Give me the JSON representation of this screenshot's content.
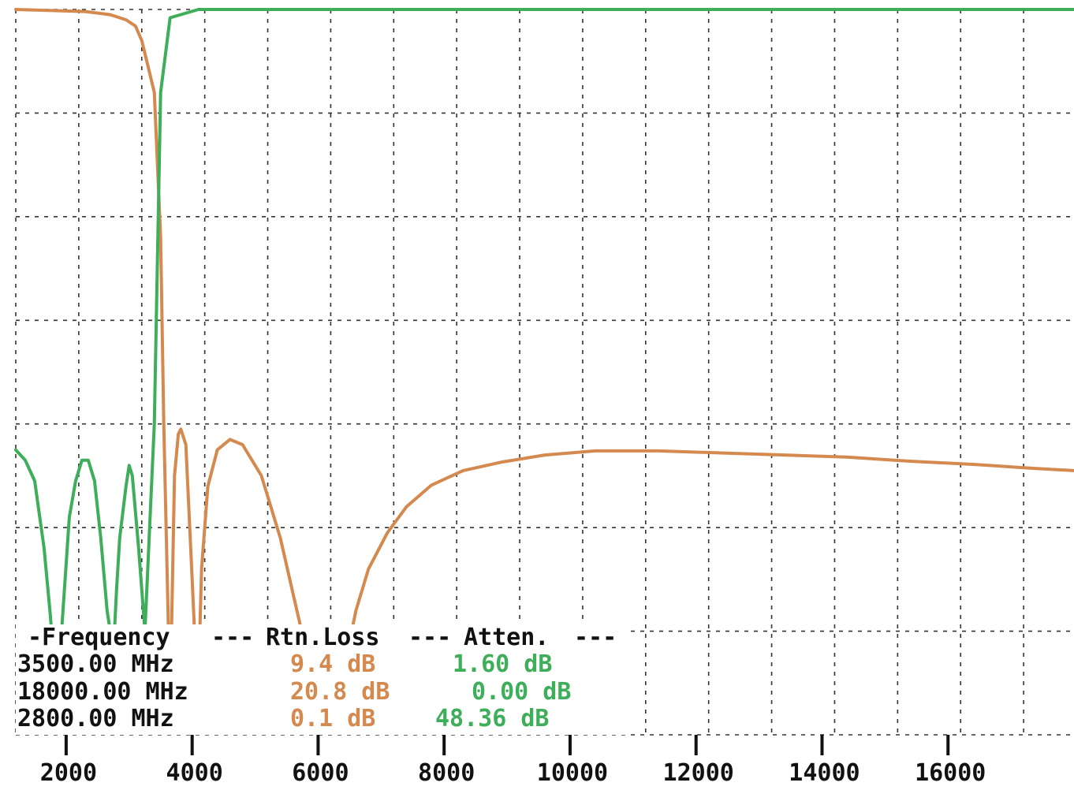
{
  "chart_data": {
    "type": "line",
    "xlim": [
      1100,
      17900
    ],
    "ylim": [
      0,
      70
    ],
    "grid": true,
    "x_ticks": [
      1100,
      2100,
      3100,
      4100,
      5100,
      6100,
      7100,
      8100,
      9100,
      10100,
      11100,
      12100,
      13100,
      14100,
      15100,
      16100,
      17100
    ],
    "y_ticks": [
      0,
      10,
      20,
      30,
      40,
      50,
      60,
      70
    ],
    "tick_labels": [
      {
        "x": 2000,
        "label": "2000"
      },
      {
        "x": 4000,
        "label": "4000"
      },
      {
        "x": 6000,
        "label": "6000"
      },
      {
        "x": 8000,
        "label": "8000"
      },
      {
        "x": 10000,
        "label": "10000"
      },
      {
        "x": 12000,
        "label": "12000"
      },
      {
        "x": 14000,
        "label": "14000"
      },
      {
        "x": 16000,
        "label": "16000"
      }
    ],
    "colors": {
      "rtn_loss": "#d4894f",
      "atten": "#3fae5a",
      "grid": "#333333",
      "text": "#111111"
    },
    "series": [
      {
        "key": "rtn_loss",
        "name": "Rtn.Loss",
        "x": [
          1100,
          2200,
          2600,
          2850,
          3000,
          3100,
          3300,
          3400,
          3450,
          3550,
          3620,
          3680,
          3720,
          3800,
          3900,
          3990,
          4050,
          4150,
          4300,
          4500,
          4700,
          5000,
          5300,
          5600,
          5900,
          6100,
          6300,
          6500,
          6700,
          7000,
          7300,
          7700,
          8200,
          8800,
          9500,
          10300,
          11300,
          12300,
          13300,
          14300,
          15300,
          16300,
          17300,
          17900
        ],
        "y": [
          0,
          0.2,
          0.5,
          1.0,
          1.6,
          3,
          8,
          22,
          40,
          67,
          45,
          41,
          40.5,
          42,
          55,
          67,
          54,
          46,
          42.5,
          41.5,
          42,
          45,
          51,
          59,
          67,
          67,
          64,
          58,
          54,
          50.5,
          48,
          45.9,
          44.5,
          43.7,
          43.0,
          42.6,
          42.6,
          42.8,
          43.0,
          43.2,
          43.6,
          43.9,
          44.3,
          44.5
        ]
      },
      {
        "key": "atten",
        "name": "Atten.",
        "x": [
          1100,
          1250,
          1400,
          1550,
          1650,
          1750,
          1850,
          1950,
          2050,
          2150,
          2250,
          2350,
          2450,
          2550,
          2650,
          2700,
          2750,
          2850,
          2900,
          2950,
          3050,
          3150,
          3300,
          3400,
          3550,
          4000,
          6000,
          10000,
          17900
        ],
        "y": [
          42.5,
          43.5,
          45.5,
          52,
          58.5,
          67,
          58,
          49,
          45.5,
          43.5,
          43.5,
          45.5,
          51,
          58,
          62,
          56,
          51,
          46,
          44,
          45,
          52,
          60,
          40,
          8,
          0.8,
          0,
          0,
          0,
          0
        ]
      }
    ]
  },
  "readout": {
    "header": {
      "frequency": "-Frequency",
      "sep1": "---",
      "rtn_loss": "Rtn.Loss",
      "sep2": "---",
      "atten": "Atten.",
      "sep3": "---"
    },
    "rows": [
      {
        "freq": "3500.00 MHz",
        "rtn": "9.4 dB",
        "att": "1.60 dB"
      },
      {
        "freq": "18000.00 MHz",
        "rtn": "20.8 dB",
        "att": "0.00 dB"
      },
      {
        "freq": "2800.00 MHz",
        "rtn": "0.1 dB",
        "att": "48.36 dB"
      }
    ]
  }
}
